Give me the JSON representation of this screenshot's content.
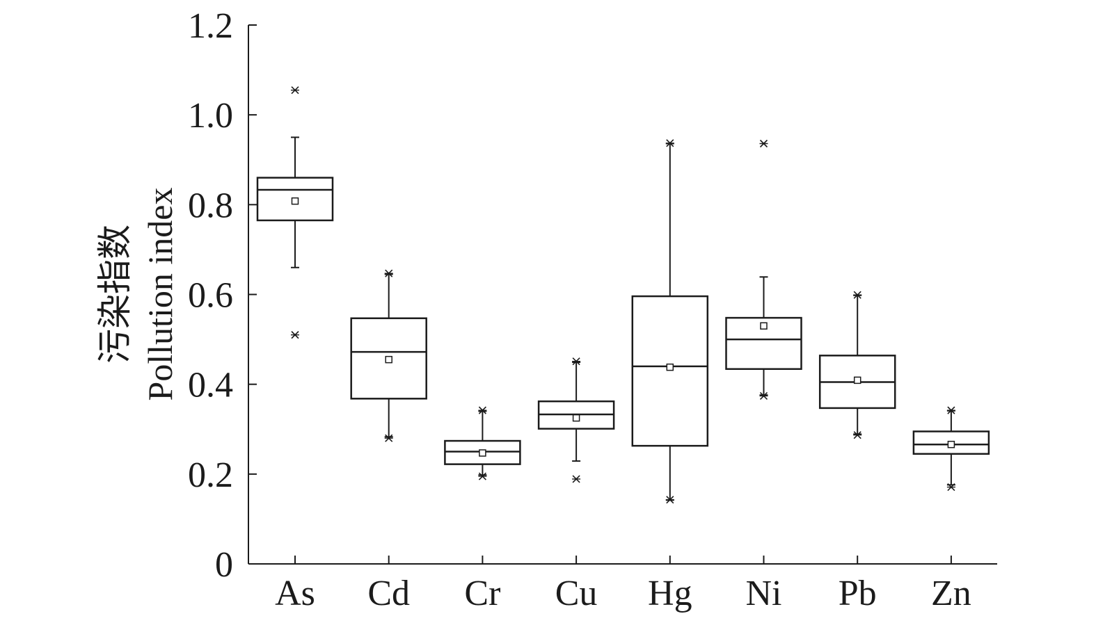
{
  "chart_data": {
    "type": "boxplot",
    "ylabel_zh": "污染指数",
    "ylabel_en": "Pollution index",
    "ylim": [
      0,
      1.2
    ],
    "y_ticks": [
      0,
      0.2,
      0.4,
      0.6,
      0.8,
      1.0,
      1.2
    ],
    "y_tick_labels": [
      "0",
      "0.2",
      "0.4",
      "0.6",
      "0.8",
      "1.0",
      "1.2"
    ],
    "categories": [
      "As",
      "Cd",
      "Cr",
      "Cu",
      "Hg",
      "Ni",
      "Pb",
      "Zn"
    ],
    "grid": false,
    "legend": "none",
    "boxes": [
      {
        "name": "As",
        "whisker_low": 0.66,
        "q1": 0.765,
        "median": 0.833,
        "q3": 0.86,
        "whisker_high": 0.95,
        "mean": 0.808,
        "min": 0.51,
        "max": 1.055,
        "outliers": [
          1.055,
          0.51
        ]
      },
      {
        "name": "Cd",
        "whisker_low": 0.283,
        "q1": 0.368,
        "median": 0.472,
        "q3": 0.547,
        "whisker_high": 0.645,
        "mean": 0.455,
        "min": 0.28,
        "max": 0.647,
        "outliers": []
      },
      {
        "name": "Cr",
        "whisker_low": 0.198,
        "q1": 0.222,
        "median": 0.25,
        "q3": 0.274,
        "whisker_high": 0.34,
        "mean": 0.247,
        "min": 0.195,
        "max": 0.342,
        "outliers": []
      },
      {
        "name": "Cu",
        "whisker_low": 0.229,
        "q1": 0.301,
        "median": 0.333,
        "q3": 0.362,
        "whisker_high": 0.449,
        "mean": 0.325,
        "min": 0.189,
        "max": 0.451,
        "outliers": [
          0.189
        ]
      },
      {
        "name": "Hg",
        "whisker_low": 0.142,
        "q1": 0.263,
        "median": 0.44,
        "q3": 0.596,
        "whisker_high": 0.936,
        "mean": 0.438,
        "min": 0.143,
        "max": 0.937,
        "outliers": []
      },
      {
        "name": "Ni",
        "whisker_low": 0.376,
        "q1": 0.434,
        "median": 0.5,
        "q3": 0.548,
        "whisker_high": 0.639,
        "mean": 0.53,
        "min": 0.374,
        "max": 0.936,
        "outliers": [
          0.936
        ]
      },
      {
        "name": "Pb",
        "whisker_low": 0.289,
        "q1": 0.347,
        "median": 0.405,
        "q3": 0.464,
        "whisker_high": 0.598,
        "mean": 0.409,
        "min": 0.287,
        "max": 0.599,
        "outliers": []
      },
      {
        "name": "Zn",
        "whisker_low": 0.176,
        "q1": 0.245,
        "median": 0.266,
        "q3": 0.295,
        "whisker_high": 0.341,
        "mean": 0.266,
        "min": 0.171,
        "max": 0.342,
        "outliers": []
      }
    ]
  }
}
